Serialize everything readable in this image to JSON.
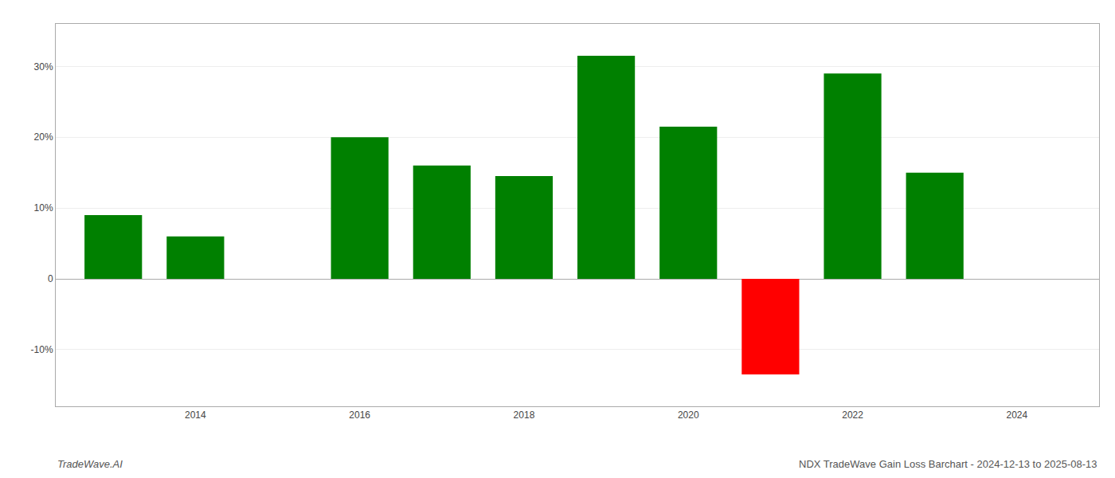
{
  "chart_data": {
    "type": "bar",
    "x": [
      2013,
      2014,
      2016,
      2017,
      2018,
      2019,
      2020,
      2021,
      2022,
      2023
    ],
    "values": [
      9.0,
      6.0,
      20.0,
      16.0,
      14.5,
      31.5,
      21.5,
      -13.5,
      29.0,
      15.0
    ],
    "colors": [
      "#008000",
      "#008000",
      "#008000",
      "#008000",
      "#008000",
      "#008000",
      "#008000",
      "#ff0000",
      "#008000",
      "#008000"
    ],
    "xlim": [
      2012.3,
      2025.0
    ],
    "xticks": [
      2014,
      2016,
      2018,
      2020,
      2022,
      2024
    ],
    "ylim": [
      -18,
      36
    ],
    "yticks": [
      {
        "value": -10,
        "label": "-10%"
      },
      0,
      {
        "value": 10,
        "label": "10%"
      },
      {
        "value": 20,
        "label": "20%"
      },
      {
        "value": 30,
        "label": "30%"
      }
    ],
    "grid": true,
    "annotations": [
      "TradeWave.AI",
      "NDX TradeWave Gain Loss Barchart - 2024-12-13 to 2025-08-13"
    ]
  }
}
